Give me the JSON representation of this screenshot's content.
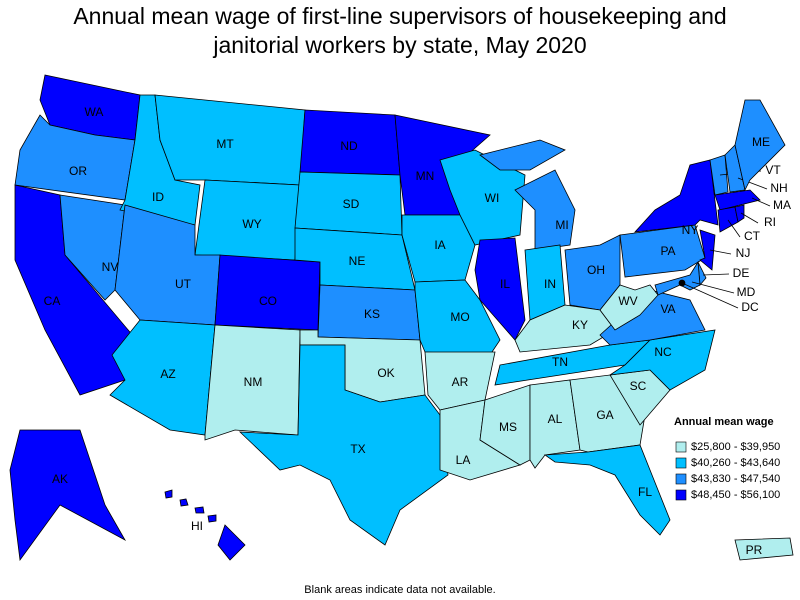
{
  "title": "Annual mean wage of first-line supervisors of housekeeping and janitorial workers by state, May 2020",
  "legend": {
    "title": "Annual mean wage",
    "items": [
      {
        "label": "$25,800 - $39,950",
        "color": "#b0eeee"
      },
      {
        "label": "$40,260 - $43,640",
        "color": "#00bfff"
      },
      {
        "label": "$43,830 - $47,540",
        "color": "#1e8fff"
      },
      {
        "label": "$48,450 - $56,100",
        "color": "#0000ff"
      }
    ]
  },
  "states": [
    {
      "abbr": "WA",
      "class": 3
    },
    {
      "abbr": "OR",
      "class": 2
    },
    {
      "abbr": "CA",
      "class": 3
    },
    {
      "abbr": "NV",
      "class": 2
    },
    {
      "abbr": "ID",
      "class": 1
    },
    {
      "abbr": "MT",
      "class": 1
    },
    {
      "abbr": "WY",
      "class": 1
    },
    {
      "abbr": "UT",
      "class": 2
    },
    {
      "abbr": "AZ",
      "class": 1
    },
    {
      "abbr": "CO",
      "class": 3
    },
    {
      "abbr": "NM",
      "class": 0
    },
    {
      "abbr": "ND",
      "class": 3
    },
    {
      "abbr": "SD",
      "class": 1
    },
    {
      "abbr": "NE",
      "class": 1
    },
    {
      "abbr": "KS",
      "class": 2
    },
    {
      "abbr": "OK",
      "class": 0
    },
    {
      "abbr": "TX",
      "class": 1
    },
    {
      "abbr": "MN",
      "class": 3
    },
    {
      "abbr": "IA",
      "class": 1
    },
    {
      "abbr": "MO",
      "class": 1
    },
    {
      "abbr": "AR",
      "class": 0
    },
    {
      "abbr": "LA",
      "class": 0
    },
    {
      "abbr": "WI",
      "class": 1
    },
    {
      "abbr": "IL",
      "class": 3
    },
    {
      "abbr": "MI",
      "class": 2
    },
    {
      "abbr": "IN",
      "class": 1
    },
    {
      "abbr": "OH",
      "class": 2
    },
    {
      "abbr": "KY",
      "class": 0
    },
    {
      "abbr": "TN",
      "class": 1
    },
    {
      "abbr": "MS",
      "class": 0
    },
    {
      "abbr": "AL",
      "class": 0
    },
    {
      "abbr": "GA",
      "class": 0
    },
    {
      "abbr": "FL",
      "class": 1
    },
    {
      "abbr": "SC",
      "class": 0
    },
    {
      "abbr": "NC",
      "class": 1
    },
    {
      "abbr": "VA",
      "class": 2
    },
    {
      "abbr": "WV",
      "class": 0
    },
    {
      "abbr": "PA",
      "class": 2
    },
    {
      "abbr": "NY",
      "class": 3
    },
    {
      "abbr": "VT",
      "class": 2
    },
    {
      "abbr": "NH",
      "class": 2
    },
    {
      "abbr": "ME",
      "class": 2
    },
    {
      "abbr": "MA",
      "class": 3
    },
    {
      "abbr": "CT",
      "class": 3
    },
    {
      "abbr": "RI",
      "class": 3
    },
    {
      "abbr": "NJ",
      "class": 3
    },
    {
      "abbr": "DE",
      "class": 2
    },
    {
      "abbr": "MD",
      "class": 2
    },
    {
      "abbr": "DC",
      "class": 3
    },
    {
      "abbr": "AK",
      "class": 3
    },
    {
      "abbr": "HI",
      "class": 3
    },
    {
      "abbr": "PR",
      "class": 0
    }
  ],
  "footnote": "Blank areas indicate data not available."
}
